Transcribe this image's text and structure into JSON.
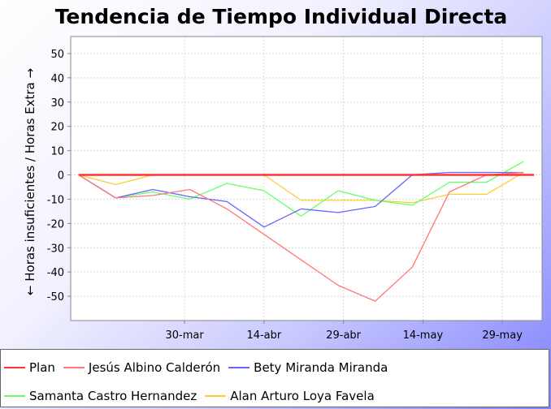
{
  "chart_data": {
    "type": "line",
    "title": "Tendencia de Tiempo Individual Directa",
    "ylabel": "← Horas insuficientes / Horas Extra →",
    "xlabel": "",
    "ylim": [
      -60,
      57
    ],
    "yticks": [
      50,
      40,
      30,
      20,
      10,
      0,
      -10,
      -20,
      -30,
      -40,
      -50
    ],
    "x": [
      "2015-03-10",
      "2015-03-17",
      "2015-03-24",
      "2015-03-31",
      "2015-04-07",
      "2015-04-14",
      "2015-04-21",
      "2015-04-28",
      "2015-05-05",
      "2015-05-12",
      "2015-05-19",
      "2015-05-26",
      "2015-06-02"
    ],
    "xticks": [
      {
        "date": "2015-03-30",
        "label": "30-mar"
      },
      {
        "date": "2015-04-14",
        "label": "14-abr"
      },
      {
        "date": "2015-04-29",
        "label": "29-abr"
      },
      {
        "date": "2015-05-14",
        "label": "14-may"
      },
      {
        "date": "2015-05-29",
        "label": "29-may"
      }
    ],
    "series": [
      {
        "name": "Plan",
        "color": "#ff3333",
        "width": 2.5,
        "points": [
          [
            "2015-03-10",
            0
          ],
          [
            "2015-03-17",
            0
          ],
          [
            "2015-03-24",
            0
          ],
          [
            "2015-03-31",
            0
          ],
          [
            "2015-04-07",
            0
          ],
          [
            "2015-04-14",
            0
          ],
          [
            "2015-04-21",
            0
          ],
          [
            "2015-04-28",
            0
          ],
          [
            "2015-05-05",
            0
          ],
          [
            "2015-05-12",
            0
          ],
          [
            "2015-05-19",
            0
          ],
          [
            "2015-05-26",
            0
          ],
          [
            "2015-06-02",
            0
          ],
          [
            "2015-06-04",
            0
          ]
        ]
      },
      {
        "name": "Jesús Albino Calderón",
        "color": "#ff7777",
        "width": 1.3,
        "points": [
          [
            "2015-03-10",
            0
          ],
          [
            "2015-03-17",
            -9.5
          ],
          [
            "2015-03-24",
            -8.5
          ],
          [
            "2015-03-31",
            -6
          ],
          [
            "2015-04-07",
            -14
          ],
          [
            "2015-04-14",
            -24.5
          ],
          [
            "2015-04-21",
            -35
          ],
          [
            "2015-04-28",
            -45.5
          ],
          [
            "2015-05-05",
            -52
          ],
          [
            "2015-05-12",
            -38
          ],
          [
            "2015-05-19",
            -7
          ],
          [
            "2015-05-26",
            0
          ],
          [
            "2015-06-02",
            1
          ]
        ]
      },
      {
        "name": "Bety Miranda Miranda",
        "color": "#6666ff",
        "width": 1.3,
        "points": [
          [
            "2015-03-10",
            0
          ],
          [
            "2015-03-17",
            -9.5
          ],
          [
            "2015-03-24",
            -6
          ],
          [
            "2015-03-31",
            -9
          ],
          [
            "2015-04-07",
            -11
          ],
          [
            "2015-04-14",
            -21.5
          ],
          [
            "2015-04-21",
            -14
          ],
          [
            "2015-04-28",
            -15.5
          ],
          [
            "2015-05-05",
            -13
          ],
          [
            "2015-05-12",
            0
          ],
          [
            "2015-05-19",
            1
          ],
          [
            "2015-05-26",
            1
          ],
          [
            "2015-06-02",
            1
          ]
        ]
      },
      {
        "name": "Samanta Castro Hernandez",
        "color": "#66ff66",
        "width": 1.3,
        "points": [
          [
            "2015-03-10",
            0
          ],
          [
            "2015-03-17",
            -9.5
          ],
          [
            "2015-03-24",
            -7
          ],
          [
            "2015-03-31",
            -10
          ],
          [
            "2015-04-07",
            -3.5
          ],
          [
            "2015-04-14",
            -6.5
          ],
          [
            "2015-04-21",
            -17
          ],
          [
            "2015-04-28",
            -6.5
          ],
          [
            "2015-05-05",
            -10.5
          ],
          [
            "2015-05-12",
            -12.5
          ],
          [
            "2015-05-19",
            -3
          ],
          [
            "2015-05-26",
            -3
          ],
          [
            "2015-06-02",
            5.5
          ]
        ]
      },
      {
        "name": "Alan Arturo Loya Favela",
        "color": "#ffcc33",
        "width": 1.3,
        "points": [
          [
            "2015-03-10",
            0
          ],
          [
            "2015-03-17",
            -4
          ],
          [
            "2015-03-24",
            0
          ],
          [
            "2015-03-31",
            0
          ],
          [
            "2015-04-07",
            0
          ],
          [
            "2015-04-14",
            0
          ],
          [
            "2015-04-21",
            -10.5
          ],
          [
            "2015-04-28",
            -10.5
          ],
          [
            "2015-05-05",
            -10.5
          ],
          [
            "2015-05-12",
            -11.5
          ],
          [
            "2015-05-19",
            -8
          ],
          [
            "2015-05-26",
            -8
          ],
          [
            "2015-06-02",
            1
          ]
        ]
      }
    ],
    "grid": true,
    "legend_position": "bottom"
  }
}
